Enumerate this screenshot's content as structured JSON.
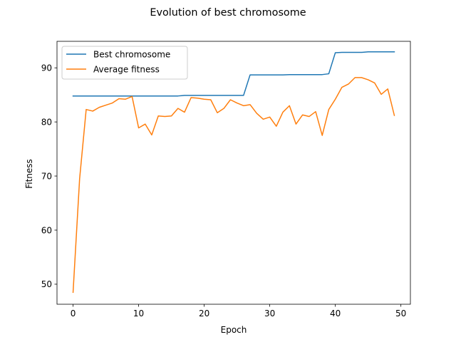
{
  "chart_data": {
    "type": "line",
    "title": "Evolution of best chromosome",
    "xlabel": "Epoch",
    "ylabel": "Fitness",
    "xlim": [
      -2.45,
      51.45
    ],
    "ylim": [
      46.3,
      94.9
    ],
    "xticks": [
      0,
      10,
      20,
      30,
      40,
      50
    ],
    "yticks": [
      50,
      60,
      70,
      80,
      90
    ],
    "grid": false,
    "legend_position": "upper-left",
    "x": [
      0,
      1,
      2,
      3,
      4,
      5,
      6,
      7,
      8,
      9,
      10,
      11,
      12,
      13,
      14,
      15,
      16,
      17,
      18,
      19,
      20,
      21,
      22,
      23,
      24,
      25,
      26,
      27,
      28,
      29,
      30,
      31,
      32,
      33,
      34,
      35,
      36,
      37,
      38,
      39,
      40,
      41,
      42,
      43,
      44,
      45,
      46,
      47,
      48,
      49
    ],
    "series": [
      {
        "name": "Best chromosome",
        "color": "#1f77b4",
        "values": [
          84.8,
          84.8,
          84.8,
          84.8,
          84.8,
          84.8,
          84.8,
          84.8,
          84.8,
          84.8,
          84.8,
          84.8,
          84.8,
          84.8,
          84.8,
          84.8,
          84.8,
          84.9,
          84.9,
          84.9,
          84.9,
          84.9,
          84.9,
          84.9,
          84.9,
          84.9,
          84.9,
          88.7,
          88.7,
          88.7,
          88.7,
          88.7,
          88.7,
          88.75,
          88.75,
          88.75,
          88.75,
          88.75,
          88.75,
          88.9,
          92.8,
          92.85,
          92.85,
          92.85,
          92.85,
          92.95,
          92.95,
          92.95,
          92.95,
          92.95
        ]
      },
      {
        "name": "Average fitness",
        "color": "#ff7f0e",
        "values": [
          48.5,
          69.5,
          82.3,
          82.0,
          82.7,
          83.1,
          83.5,
          84.3,
          84.2,
          84.7,
          78.9,
          79.6,
          77.6,
          81.1,
          81.0,
          81.1,
          82.5,
          81.8,
          84.5,
          84.4,
          84.2,
          84.1,
          81.7,
          82.5,
          84.1,
          83.5,
          83.0,
          83.2,
          81.6,
          80.5,
          80.9,
          79.2,
          81.8,
          83.0,
          79.6,
          81.3,
          81.0,
          81.9,
          77.5,
          82.3,
          84.2,
          86.4,
          87.0,
          88.2,
          88.2,
          87.8,
          87.2,
          85.1,
          86.1,
          81.2
        ]
      }
    ]
  }
}
